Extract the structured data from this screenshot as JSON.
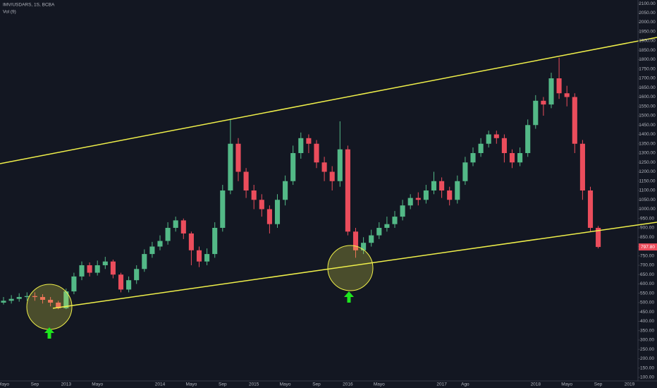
{
  "chart_data": {
    "type": "candlestick",
    "title": "IMV/USDARS, 1S, BCBA",
    "subtitle": "Vol (9)",
    "categories": [
      "Mayo",
      null,
      null,
      null,
      "Sep",
      null,
      null,
      null,
      "2013",
      null,
      null,
      null,
      "Mayo",
      null,
      null,
      null,
      null,
      null,
      null,
      null,
      "2014",
      null,
      null,
      null,
      "Mayo",
      null,
      null,
      null,
      "Sep",
      null,
      null,
      null,
      "2015",
      null,
      null,
      null,
      "Mayo",
      null,
      null,
      null,
      "Sep",
      null,
      null,
      null,
      "2016",
      null,
      null,
      null,
      "Mayo",
      null,
      null,
      null,
      null,
      null,
      null,
      null,
      "2017",
      null,
      null,
      "Ago",
      null,
      null,
      null,
      null,
      null,
      null,
      null,
      null,
      "2018",
      null,
      null,
      null,
      "Mayo",
      null,
      null,
      null,
      "Sep",
      null,
      null,
      null,
      "2019"
    ],
    "open": [
      500,
      510,
      520,
      530,
      535,
      530,
      515,
      500,
      470,
      560,
      640,
      700,
      660,
      700,
      720,
      650,
      570,
      620,
      680,
      760,
      800,
      830,
      900,
      940,
      870,
      780,
      720,
      760,
      900,
      1100,
      1350,
      1200,
      1100,
      1050,
      1000,
      920,
      1050,
      1150,
      1300,
      1380,
      1350,
      1250,
      1200,
      1150,
      1320,
      880,
      780,
      820,
      860,
      900,
      920,
      960,
      1020,
      1060,
      1050,
      1100,
      1150,
      1100,
      1050,
      1150,
      1250,
      1300,
      1350,
      1400,
      1380,
      1300,
      1250,
      1300,
      1450,
      1580,
      1560,
      1700,
      1620,
      1600,
      1350,
      1100,
      900,
      null,
      null,
      null,
      null
    ],
    "high": [
      530,
      540,
      550,
      555,
      555,
      545,
      530,
      510,
      575,
      660,
      720,
      715,
      725,
      745,
      730,
      660,
      640,
      700,
      785,
      825,
      860,
      930,
      960,
      950,
      880,
      800,
      790,
      930,
      1130,
      1480,
      1380,
      1220,
      1130,
      1080,
      1020,
      1080,
      1180,
      1340,
      1410,
      1400,
      1370,
      1280,
      1230,
      1470,
      1340,
      900,
      850,
      890,
      930,
      960,
      990,
      1050,
      1080,
      1090,
      1130,
      1200,
      1170,
      1120,
      1180,
      1280,
      1330,
      1380,
      1420,
      1420,
      1400,
      1320,
      1330,
      1480,
      1610,
      1600,
      1730,
      1810,
      1660,
      1620,
      1370,
      1120,
      910,
      null,
      null,
      null,
      null
    ],
    "low": [
      490,
      495,
      505,
      510,
      510,
      495,
      480,
      465,
      465,
      545,
      620,
      640,
      645,
      680,
      630,
      555,
      555,
      600,
      665,
      740,
      780,
      810,
      880,
      840,
      700,
      690,
      700,
      740,
      880,
      1080,
      1150,
      1060,
      1000,
      960,
      870,
      900,
      1020,
      1130,
      1270,
      1300,
      1220,
      1150,
      1100,
      1120,
      860,
      740,
      760,
      800,
      840,
      880,
      900,
      940,
      1000,
      1020,
      1030,
      1080,
      1060,
      1020,
      1030,
      1130,
      1230,
      1280,
      1330,
      1350,
      1250,
      1220,
      1230,
      1280,
      1430,
      1500,
      1540,
      1590,
      1550,
      1300,
      1050,
      880,
      790,
      null,
      null,
      null,
      null
    ],
    "close": [
      510,
      520,
      530,
      535,
      530,
      515,
      500,
      470,
      560,
      640,
      700,
      660,
      700,
      720,
      650,
      570,
      620,
      680,
      760,
      800,
      830,
      900,
      940,
      870,
      780,
      720,
      760,
      900,
      1100,
      1350,
      1200,
      1100,
      1050,
      1000,
      920,
      1050,
      1150,
      1300,
      1380,
      1350,
      1250,
      1200,
      1150,
      1320,
      880,
      780,
      820,
      860,
      900,
      920,
      960,
      1020,
      1060,
      1050,
      1100,
      1150,
      1100,
      1050,
      1150,
      1250,
      1300,
      1350,
      1400,
      1380,
      1300,
      1250,
      1300,
      1450,
      1580,
      1560,
      1700,
      1620,
      1600,
      1350,
      1100,
      900,
      797.8,
      null,
      null,
      null,
      null
    ],
    "up_color": "#53b987",
    "down_color": "#eb4d5c",
    "last_price": {
      "value": 797.8,
      "label": "797.80"
    },
    "ylim": [
      81,
      2119
    ],
    "yticks": [
      {
        "value": 100,
        "label": "100.00"
      },
      {
        "value": 150,
        "label": "150.00"
      },
      {
        "value": 200,
        "label": "200.00"
      },
      {
        "value": 250,
        "label": "250.00"
      },
      {
        "value": 300,
        "label": "300.00"
      },
      {
        "value": 350,
        "label": "350.00"
      },
      {
        "value": 400,
        "label": "400.00"
      },
      {
        "value": 450,
        "label": "450.00"
      },
      {
        "value": 500,
        "label": "500.00"
      },
      {
        "value": 550,
        "label": "550.00"
      },
      {
        "value": 600,
        "label": "600.00"
      },
      {
        "value": 650,
        "label": "650.00"
      },
      {
        "value": 700,
        "label": "700.00"
      },
      {
        "value": 750,
        "label": "750.00"
      },
      {
        "value": 800,
        "label": "800.00"
      },
      {
        "value": 850,
        "label": "850.00"
      },
      {
        "value": 900,
        "label": "900.00"
      },
      {
        "value": 950,
        "label": "950.00"
      },
      {
        "value": 1000,
        "label": "1000.00"
      },
      {
        "value": 1050,
        "label": "1050.00"
      },
      {
        "value": 1100,
        "label": "1100.00"
      },
      {
        "value": 1150,
        "label": "1150.00"
      },
      {
        "value": 1200,
        "label": "1200.00"
      },
      {
        "value": 1250,
        "label": "1250.00"
      },
      {
        "value": 1300,
        "label": "1300.00"
      },
      {
        "value": 1350,
        "label": "1350.00"
      },
      {
        "value": 1400,
        "label": "1400.00"
      },
      {
        "value": 1450,
        "label": "1450.00"
      },
      {
        "value": 1500,
        "label": "1500.00"
      },
      {
        "value": 1550,
        "label": "1550.00"
      },
      {
        "value": 1600,
        "label": "1600.00"
      },
      {
        "value": 1650,
        "label": "1650.00"
      },
      {
        "value": 1700,
        "label": "1700.00"
      },
      {
        "value": 1750,
        "label": "1750.00"
      },
      {
        "value": 1800,
        "label": "1800.00"
      },
      {
        "value": 1850,
        "label": "1850.00"
      },
      {
        "value": 1900,
        "label": "1900.00"
      },
      {
        "value": 1950,
        "label": "1950.00"
      },
      {
        "value": 2000,
        "label": "2000.00"
      },
      {
        "value": 2050,
        "label": "2050.00"
      },
      {
        "value": 2100,
        "label": "2100.00"
      }
    ],
    "grid": false
  }
}
